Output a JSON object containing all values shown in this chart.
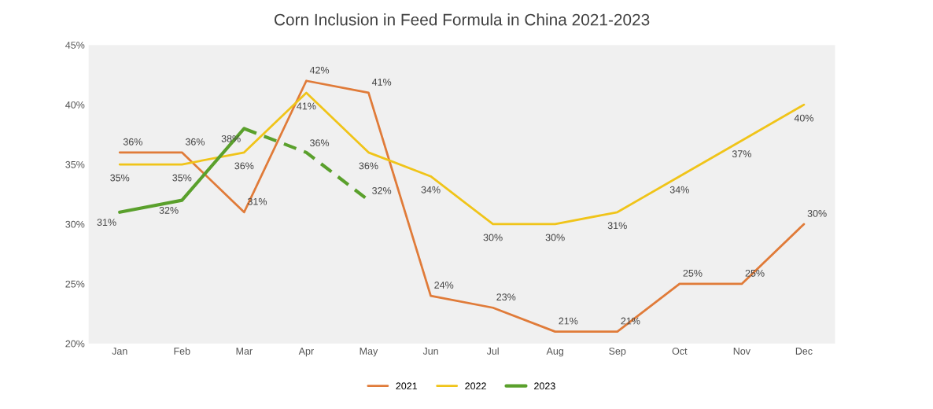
{
  "chart_data": {
    "type": "line",
    "title": "Corn Inclusion in Feed Formula in China 2021-2023",
    "categories": [
      "Jan",
      "Feb",
      "Mar",
      "Apr",
      "May",
      "Jun",
      "Jul",
      "Aug",
      "Sep",
      "Oct",
      "Nov",
      "Dec"
    ],
    "series": [
      {
        "name": "2021",
        "color": "#e07b39",
        "values": [
          36,
          36,
          31,
          42,
          41,
          24,
          23,
          21,
          21,
          25,
          25,
          30
        ],
        "value_labels": [
          "36%",
          "36%",
          "31%",
          "42%",
          "41%",
          "24%",
          "23%",
          "21%",
          "21%",
          "25%",
          "25%",
          "30%"
        ]
      },
      {
        "name": "2022",
        "color": "#f0c419",
        "values": [
          35,
          35,
          36,
          41,
          36,
          34,
          30,
          30,
          31,
          34,
          37,
          40
        ],
        "value_labels": [
          "35%",
          "35%",
          "36%",
          "41%",
          "36%",
          "34%",
          "30%",
          "30%",
          "31%",
          "34%",
          "37%",
          "40%"
        ]
      },
      {
        "name": "2023",
        "color": "#5aa02c",
        "values": [
          31,
          32,
          38,
          null,
          null,
          null,
          null,
          null,
          null,
          null,
          null,
          null
        ],
        "value_labels": [
          "31%",
          "32%",
          "38%",
          null,
          null,
          null,
          null,
          null,
          null,
          null,
          null,
          null
        ]
      },
      {
        "color": "#5aa02c",
        "line_style": "dashed",
        "values": [
          null,
          null,
          38,
          36,
          32,
          null,
          null,
          null,
          null,
          null,
          null,
          null
        ],
        "value_labels": [
          null,
          null,
          null,
          "36%",
          "32%",
          null,
          null,
          null,
          null,
          null,
          null,
          null
        ]
      }
    ],
    "ylim": [
      20,
      45
    ],
    "yticks": [
      {
        "value": 20,
        "label": "20%"
      },
      {
        "value": 25,
        "label": "25%"
      },
      {
        "value": 30,
        "label": "30%"
      },
      {
        "value": 35,
        "label": "35%"
      },
      {
        "value": 40,
        "label": "40%"
      },
      {
        "value": 45,
        "label": "45%"
      }
    ],
    "grid": false,
    "marker": "none",
    "line_style": "solid",
    "legend": "bottom"
  }
}
